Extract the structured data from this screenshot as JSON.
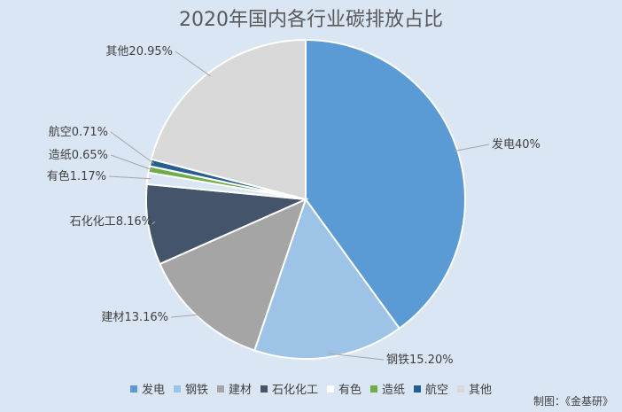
{
  "credit": "制图：《金基研》",
  "chart_data": {
    "type": "pie",
    "title": "2020年国内各行业碳排放占比",
    "slices": [
      {
        "name": "发电",
        "value": 40,
        "label": "发电40%",
        "color": "#5b9bd5"
      },
      {
        "name": "钢铁",
        "value": 15.2,
        "label": "钢铁15.20%",
        "color": "#9dc3e6"
      },
      {
        "name": "建材",
        "value": 13.16,
        "label": "建材13.16%",
        "color": "#a5a5a5"
      },
      {
        "name": "石化化工",
        "value": 8.16,
        "label": "石化化工8.16%",
        "color": "#44546a"
      },
      {
        "name": "有色",
        "value": 1.17,
        "label": "有色1.17%",
        "color": "#dbe6f4"
      },
      {
        "name": "造纸",
        "value": 0.65,
        "label": "造纸0.65%",
        "color": "#70ad47"
      },
      {
        "name": "航空",
        "value": 0.71,
        "label": "航空0.71%",
        "color": "#255e91"
      },
      {
        "name": "其他",
        "value": 20.95,
        "label": "其他20.95%",
        "color": "#d9d9d9"
      }
    ],
    "legend": [
      "发电",
      "钢铁",
      "建材",
      "石化化工",
      "有色",
      "造纸",
      "航空",
      "其他"
    ],
    "legend_position": "bottom"
  }
}
